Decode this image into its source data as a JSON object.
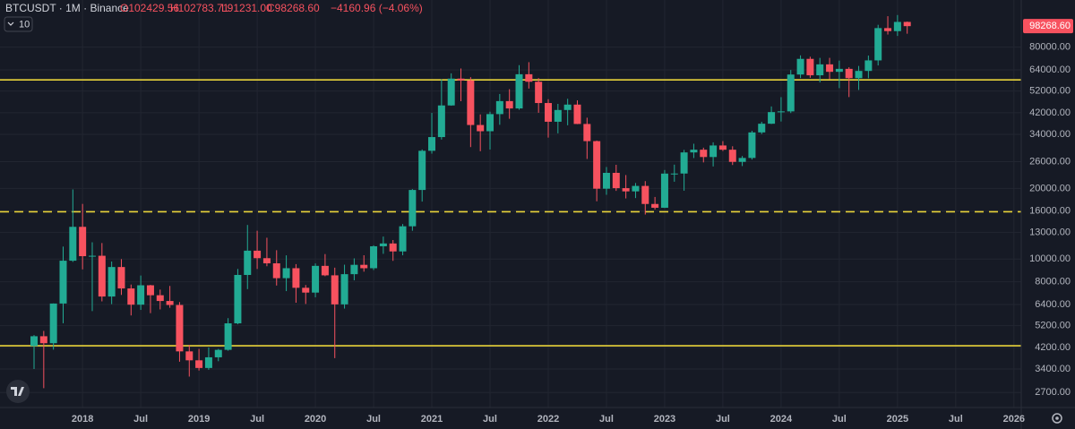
{
  "chart_data": {
    "type": "candlestick",
    "symbol_line": "BTCUSDT · 1M · Binance",
    "ohlc_header": [
      "O102429.56",
      "H102783.71",
      "L91231.00",
      "C98268.60",
      "−4160.96 (−4.06%)"
    ],
    "indicator_count": "10",
    "last_price_label": "98268.60",
    "up_color": "#22ab94",
    "down_color": "#f7525f",
    "log_scale": true,
    "grid": true,
    "categories": [
      null,
      null,
      null,
      null,
      null,
      "2018",
      null,
      null,
      null,
      null,
      null,
      "Jul",
      null,
      null,
      null,
      null,
      null,
      "2019",
      null,
      null,
      null,
      null,
      null,
      "Jul",
      null,
      null,
      null,
      null,
      null,
      "2020",
      null,
      null,
      null,
      null,
      null,
      "Jul",
      null,
      null,
      null,
      null,
      null,
      "2021",
      null,
      null,
      null,
      null,
      null,
      "Jul",
      null,
      null,
      null,
      null,
      null,
      "2022",
      null,
      null,
      null,
      null,
      null,
      "Jul",
      null,
      null,
      null,
      null,
      null,
      "2023",
      null,
      null,
      null,
      null,
      null,
      "Jul",
      null,
      null,
      null,
      null,
      null,
      "2024",
      null,
      null,
      null,
      null,
      null,
      "Jul",
      null,
      null,
      null,
      null,
      null,
      "2025",
      null,
      null,
      null,
      null,
      null,
      "Jul",
      null,
      null,
      null,
      null,
      null,
      "2026"
    ],
    "open": [
      4261,
      4689,
      4378,
      6463,
      9838,
      13716,
      10285,
      10326,
      6923,
      9246,
      7494,
      6391,
      7730,
      7011,
      6626,
      6371,
      4041,
      3702,
      3434,
      3813,
      4103,
      5321,
      8555,
      10855,
      10085,
      9588,
      8289,
      9140,
      7542,
      7195,
      9352,
      8523,
      6410,
      8620,
      9448,
      9138,
      11335,
      11650,
      10776,
      13791,
      19695,
      28923,
      33092,
      45135,
      58740,
      57694,
      37254,
      35045,
      41461,
      47100,
      43824,
      61300,
      56950,
      46216,
      38466,
      43160,
      45510,
      37630,
      31801,
      19942,
      23296,
      20048,
      19423,
      20490,
      17165,
      16541,
      23125,
      23141,
      28465,
      29233,
      27210,
      30472,
      29232,
      25940,
      26962,
      34640,
      37724,
      42284,
      42580,
      61131,
      71280,
      60672,
      67540,
      62772,
      64628,
      58974,
      63328,
      70216,
      96408,
      93576,
      102429.56,
      null,
      null,
      null,
      null,
      null,
      null,
      null,
      null,
      null,
      null,
      null
    ],
    "high": [
      4745,
      4939,
      6470,
      11300,
      19798,
      17176,
      11786,
      11700,
      9759,
      9990,
      7786,
      8507,
      7760,
      7410,
      7680,
      6555,
      4311,
      4140,
      4198,
      4140,
      5600,
      9074,
      13970,
      13200,
      12326,
      10905,
      10370,
      9513,
      7750,
      9578,
      10500,
      9189,
      9460,
      10067,
      10380,
      11444,
      12468,
      12050,
      14100,
      19863,
      29300,
      41950,
      58352,
      61844,
      64854,
      59592,
      41330,
      42448,
      50500,
      52920,
      67000,
      69000,
      59053,
      47990,
      45821,
      48189,
      47444,
      40023,
      31982,
      24668,
      25211,
      22799,
      21085,
      21480,
      18387,
      23960,
      25250,
      29184,
      31000,
      29820,
      31432,
      31804,
      30244,
      27483,
      35198,
      38450,
      44700,
      48970,
      63913,
      73777,
      72797,
      71979,
      71997,
      70079,
      65660,
      66498,
      73620,
      99588,
      108353,
      109588,
      102783.71,
      null,
      null,
      null,
      null,
      null,
      null,
      null,
      null,
      null,
      null,
      null
    ],
    "low": [
      3400,
      2817,
      4110,
      5325,
      9722,
      9035,
      6000,
      6600,
      6425,
      7032,
      5750,
      6070,
      5880,
      6100,
      6200,
      3652,
      3156,
      3349,
      3373,
      3670,
      4067,
      5273,
      7444,
      9071,
      9320,
      7710,
      7300,
      6515,
      6435,
      6871,
      8450,
      3782,
      6150,
      8117,
      8833,
      8976,
      10525,
      9825,
      10374,
      13195,
      17572,
      28130,
      32296,
      45000,
      47044,
      30000,
      28805,
      29278,
      37332,
      39600,
      43283,
      53256,
      42000,
      32917,
      34322,
      37155,
      37578,
      26700,
      17622,
      18782,
      19520,
      18125,
      18190,
      15476,
      16256,
      16500,
      21351,
      19549,
      26942,
      25811,
      24800,
      28861,
      25166,
      24901,
      26538,
      34097,
      37615,
      38555,
      41884,
      59005,
      59191,
      56552,
      58402,
      53485,
      49000,
      52550,
      58946,
      66835,
      90500,
      89256,
      91231,
      null,
      null,
      null,
      null,
      null,
      null,
      null,
      null,
      null,
      null,
      null
    ],
    "close": [
      4689,
      4378,
      6463,
      9838,
      13716,
      10285,
      10326,
      6923,
      9246,
      7494,
      6391,
      7730,
      7011,
      6626,
      6371,
      4041,
      3702,
      3434,
      3813,
      4103,
      5321,
      8555,
      10855,
      10085,
      9588,
      8289,
      9140,
      7542,
      7195,
      9352,
      8523,
      6410,
      8620,
      9448,
      9138,
      11335,
      11650,
      10776,
      13791,
      19695,
      28923,
      33092,
      45135,
      58740,
      57694,
      37254,
      35045,
      41461,
      47100,
      43824,
      61300,
      56950,
      46216,
      38466,
      43160,
      45510,
      37630,
      31801,
      19942,
      23296,
      20048,
      19423,
      20490,
      17165,
      16541,
      23125,
      23141,
      28465,
      29233,
      27210,
      30472,
      29232,
      25940,
      26962,
      34640,
      37724,
      42284,
      42580,
      61131,
      71280,
      60672,
      67540,
      62772,
      64628,
      58974,
      63328,
      70216,
      96408,
      93576,
      102429.56,
      98268.6,
      null,
      null,
      null,
      null,
      null,
      null,
      null,
      null,
      null,
      null,
      null
    ],
    "ylim": [
      2330,
      127000
    ],
    "yticks": [
      {
        "value": 2700,
        "label": "2700.00"
      },
      {
        "value": 3400,
        "label": "3400.00"
      },
      {
        "value": 4200,
        "label": "4200.00"
      },
      {
        "value": 5200,
        "label": "5200.00"
      },
      {
        "value": 6400,
        "label": "6400.00"
      },
      {
        "value": 8000,
        "label": "8000.00"
      },
      {
        "value": 10000,
        "label": "10000.00"
      },
      {
        "value": 13000,
        "label": "13000.00"
      },
      {
        "value": 16000,
        "label": "16000.00"
      },
      {
        "value": 20000,
        "label": "20000.00"
      },
      {
        "value": 26000,
        "label": "26000.00"
      },
      {
        "value": 34000,
        "label": "34000.00"
      },
      {
        "value": 42000,
        "label": "42000.00"
      },
      {
        "value": 52000,
        "label": "52000.00"
      },
      {
        "value": 64000,
        "label": "64000.00"
      },
      {
        "value": 80000,
        "label": "80000.00"
      }
    ],
    "hlines": [
      {
        "value": 58000,
        "style": "solid",
        "color": "#e8d33a"
      },
      {
        "value": 15900,
        "style": "dashed",
        "color": "#e8d33a"
      },
      {
        "value": 4270,
        "style": "solid",
        "color": "#e8d33a"
      }
    ]
  }
}
